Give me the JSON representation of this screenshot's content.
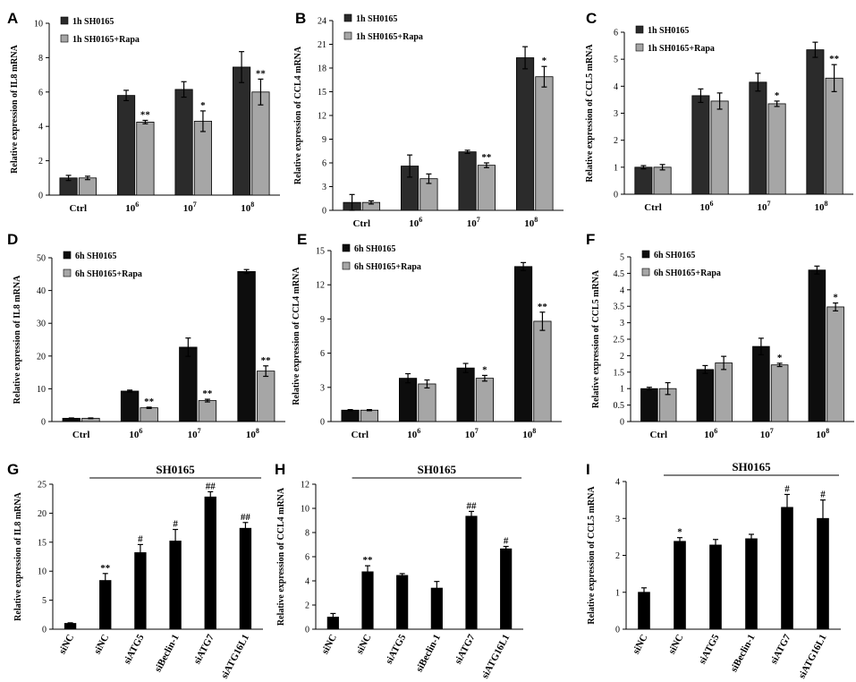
{
  "colors": {
    "dark1h": "#2b2b2b",
    "dark6h": "#0d0d0d",
    "light": "#a6a6a6",
    "black": "#000000"
  },
  "chart_data": [
    {
      "panel": "A",
      "type": "bar",
      "ylabel": "Relative expression of IL8 mRNA",
      "ylim": [
        0,
        10
      ],
      "yticks": [
        "0",
        "2",
        "4",
        "6",
        "8",
        "10"
      ],
      "categories": [
        "Ctrl",
        "10",
        "10",
        "10"
      ],
      "sups": [
        "",
        "6",
        "7",
        "8"
      ],
      "legend": [
        "1h SH0165",
        "1h SH0165+Rapa"
      ],
      "series": [
        {
          "name": "1h SH0165",
          "values": [
            1.0,
            5.8,
            6.15,
            7.45
          ],
          "errors": [
            0.15,
            0.3,
            0.45,
            0.9
          ],
          "stars": [
            "",
            "",
            "",
            ""
          ]
        },
        {
          "name": "1h SH0165+Rapa",
          "values": [
            1.0,
            4.25,
            4.3,
            6.0
          ],
          "errors": [
            0.1,
            0.1,
            0.6,
            0.75
          ],
          "stars": [
            "",
            "**",
            "*",
            "**"
          ]
        }
      ]
    },
    {
      "panel": "B",
      "type": "bar",
      "ylabel": "Relative expression of CCL4 mRNA",
      "ylim": [
        0,
        24
      ],
      "yticks": [
        "0",
        "3",
        "6",
        "9",
        "12",
        "15",
        "18",
        "21",
        "24"
      ],
      "categories": [
        "Ctrl",
        "10",
        "10",
        "10"
      ],
      "sups": [
        "",
        "6",
        "7",
        "8"
      ],
      "legend": [
        "1h SH0165",
        "1h SH0165+Rapa"
      ],
      "series": [
        {
          "name": "1h SH0165",
          "values": [
            1.0,
            5.6,
            7.4,
            19.3
          ],
          "errors": [
            1.0,
            1.4,
            0.2,
            1.4
          ],
          "stars": [
            "",
            "",
            "",
            ""
          ]
        },
        {
          "name": "1h SH0165+Rapa",
          "values": [
            1.0,
            4.0,
            5.7,
            16.9
          ],
          "errors": [
            0.2,
            0.6,
            0.3,
            1.3
          ],
          "stars": [
            "",
            "",
            "**",
            "*"
          ]
        }
      ]
    },
    {
      "panel": "C",
      "type": "bar",
      "ylabel": "Relative expression of CCL5 mRNA",
      "ylim": [
        0,
        6
      ],
      "yticks": [
        "0",
        "1",
        "2",
        "3",
        "4",
        "5",
        "6"
      ],
      "categories": [
        "Ctrl",
        "10",
        "10",
        "10"
      ],
      "sups": [
        "",
        "6",
        "7",
        "8"
      ],
      "legend": [
        "1h SH0165",
        "1h SH0165+Rapa"
      ],
      "series": [
        {
          "name": "1h SH0165",
          "values": [
            1.0,
            3.65,
            4.15,
            5.35
          ],
          "errors": [
            0.06,
            0.25,
            0.33,
            0.28
          ],
          "stars": [
            "",
            "",
            "",
            ""
          ]
        },
        {
          "name": "1h SH0165+Rapa",
          "values": [
            1.0,
            3.45,
            3.35,
            4.3
          ],
          "errors": [
            0.1,
            0.3,
            0.1,
            0.5
          ],
          "stars": [
            "",
            "",
            "*",
            "**"
          ]
        }
      ]
    },
    {
      "panel": "D",
      "type": "bar",
      "ylabel": "Relative expression of IL8 mRNA",
      "ylim": [
        0,
        50
      ],
      "yticks": [
        "0",
        "10",
        "20",
        "30",
        "40",
        "50"
      ],
      "categories": [
        "Ctrl",
        "10",
        "10",
        "10"
      ],
      "sups": [
        "",
        "6",
        "7",
        "8"
      ],
      "legend": [
        "6h SH0165",
        "6h SH0165+Rapa"
      ],
      "series": [
        {
          "name": "6h SH0165",
          "values": [
            1.0,
            9.3,
            22.7,
            45.8
          ],
          "errors": [
            0.1,
            0.3,
            2.8,
            0.6
          ],
          "stars": [
            "",
            "",
            "",
            ""
          ]
        },
        {
          "name": "6h SH0165+Rapa",
          "values": [
            1.0,
            4.2,
            6.4,
            15.4
          ],
          "errors": [
            0.1,
            0.2,
            0.4,
            1.6
          ],
          "stars": [
            "",
            "**",
            "**",
            "**"
          ]
        }
      ]
    },
    {
      "panel": "E",
      "type": "bar",
      "ylabel": "Relative expression of CCL4 mRNA",
      "ylim": [
        0,
        15
      ],
      "yticks": [
        "0",
        "3",
        "6",
        "9",
        "12",
        "15"
      ],
      "categories": [
        "Ctrl",
        "10",
        "10",
        "10"
      ],
      "sups": [
        "",
        "6",
        "7",
        "8"
      ],
      "legend": [
        "6h SH0165",
        "6h SH0165+Rapa"
      ],
      "series": [
        {
          "name": "6h SH0165",
          "values": [
            1.0,
            3.8,
            4.7,
            13.6
          ],
          "errors": [
            0.05,
            0.4,
            0.4,
            0.35
          ],
          "stars": [
            "",
            "",
            "",
            ""
          ]
        },
        {
          "name": "6h SH0165+Rapa",
          "values": [
            1.0,
            3.3,
            3.8,
            8.8
          ],
          "errors": [
            0.05,
            0.35,
            0.25,
            0.8
          ],
          "stars": [
            "",
            "",
            "*",
            "**"
          ]
        }
      ]
    },
    {
      "panel": "F",
      "type": "bar",
      "ylabel": "Relative expression of CCL5 mRNA",
      "ylim": [
        0,
        5
      ],
      "yticks": [
        "0",
        "0.5",
        "1",
        "1.5",
        "2",
        "2.5",
        "3",
        "3.5",
        "4",
        "4.5",
        "5"
      ],
      "categories": [
        "Ctrl",
        "10",
        "10",
        "10"
      ],
      "sups": [
        "",
        "6",
        "7",
        "8"
      ],
      "legend": [
        "6h SH0165",
        "6h SH0165+Rapa"
      ],
      "series": [
        {
          "name": "6h SH0165",
          "values": [
            1.0,
            1.58,
            2.28,
            4.6
          ],
          "errors": [
            0.04,
            0.12,
            0.25,
            0.12
          ],
          "stars": [
            "",
            "",
            "",
            ""
          ]
        },
        {
          "name": "6h SH0165+Rapa",
          "values": [
            1.0,
            1.78,
            1.72,
            3.48
          ],
          "errors": [
            0.18,
            0.2,
            0.05,
            0.12
          ],
          "stars": [
            "",
            "",
            "*",
            "*"
          ]
        }
      ]
    },
    {
      "panel": "G",
      "type": "bar",
      "ylabel": "Relative expression of IL8 mRNA",
      "ylim": [
        0,
        25
      ],
      "yticks": [
        "0",
        "5",
        "10",
        "15",
        "20",
        "25"
      ],
      "bracket": "SH0165",
      "categories": [
        "siNC",
        "siNC",
        "siATG5",
        "siBeclin-1",
        "siATG7",
        "siATG16L1"
      ],
      "series": [
        {
          "name": "IL8",
          "values": [
            1.0,
            8.4,
            13.2,
            15.2,
            22.8,
            17.4
          ],
          "errors": [
            0.1,
            1.2,
            1.4,
            2.0,
            0.9,
            1.0
          ],
          "stars": [
            "",
            "**",
            "#",
            "#",
            "##",
            "##"
          ]
        }
      ]
    },
    {
      "panel": "H",
      "type": "bar",
      "ylabel": "Relative expression of CCL4 mRNA",
      "ylim": [
        0,
        12
      ],
      "yticks": [
        "0",
        "2",
        "4",
        "6",
        "8",
        "10",
        "12"
      ],
      "bracket": "SH0165",
      "categories": [
        "siNC",
        "siNC",
        "siATG5",
        "siBeclin-1",
        "siATG7",
        "siATG16L1"
      ],
      "series": [
        {
          "name": "CCL4",
          "values": [
            1.0,
            4.75,
            4.45,
            3.4,
            9.35,
            6.65
          ],
          "errors": [
            0.3,
            0.5,
            0.15,
            0.55,
            0.4,
            0.2
          ],
          "stars": [
            "",
            "**",
            "",
            "",
            "##",
            "#"
          ]
        }
      ]
    },
    {
      "panel": "I",
      "type": "bar",
      "ylabel": "Relative expression of CCL5 mRNA",
      "ylim": [
        0,
        4
      ],
      "yticks": [
        "0",
        "1",
        "2",
        "3",
        "4"
      ],
      "bracket": "SH0165",
      "categories": [
        "siNC",
        "siNC",
        "siATG5",
        "siBeclin-1",
        "siATG7",
        "siATG16L1"
      ],
      "series": [
        {
          "name": "CCL5",
          "values": [
            1.0,
            2.38,
            2.28,
            2.45,
            3.3,
            3.0
          ],
          "errors": [
            0.12,
            0.1,
            0.15,
            0.12,
            0.35,
            0.5
          ],
          "stars": [
            "",
            "*",
            "",
            "",
            "#",
            "#"
          ]
        }
      ]
    }
  ]
}
